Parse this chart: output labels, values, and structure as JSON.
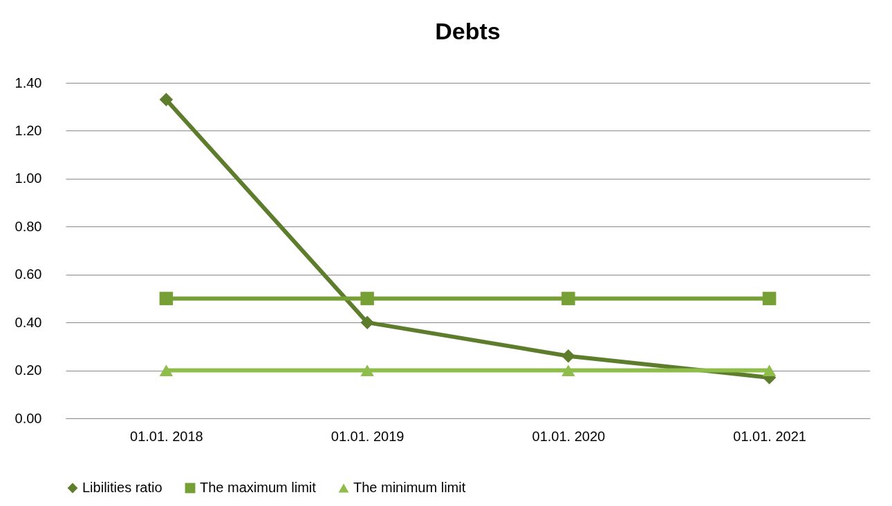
{
  "chart_data": {
    "type": "line",
    "title": "Debts",
    "categories": [
      "01.01. 2018",
      "01.01. 2019",
      "01.01. 2020",
      "01.01. 2021"
    ],
    "series": [
      {
        "name": "Libilities ratio",
        "color": "#5e7d2c",
        "marker": "diamond",
        "values": [
          1.33,
          0.4,
          0.26,
          0.17
        ]
      },
      {
        "name": "The maximum limit",
        "color": "#76a035",
        "marker": "square",
        "values": [
          0.5,
          0.5,
          0.5,
          0.5
        ]
      },
      {
        "name": "The minimum limit",
        "color": "#8fbd4c",
        "marker": "triangle",
        "values": [
          0.2,
          0.2,
          0.2,
          0.2
        ]
      }
    ],
    "ylim": [
      0,
      1.4
    ],
    "yticks": [
      {
        "value": 0,
        "label": "0.00"
      },
      {
        "value": 0.2,
        "label": "0.20"
      },
      {
        "value": 0.4,
        "label": "0.40"
      },
      {
        "value": 0.6,
        "label": "0.60"
      },
      {
        "value": 0.8,
        "label": "0.80"
      },
      {
        "value": 1,
        "label": "1.00"
      },
      {
        "value": 1.2,
        "label": "1.20"
      },
      {
        "value": 1.4,
        "label": "1.40"
      }
    ],
    "grid": "y",
    "legend": "bottom",
    "line_style": "solid"
  }
}
